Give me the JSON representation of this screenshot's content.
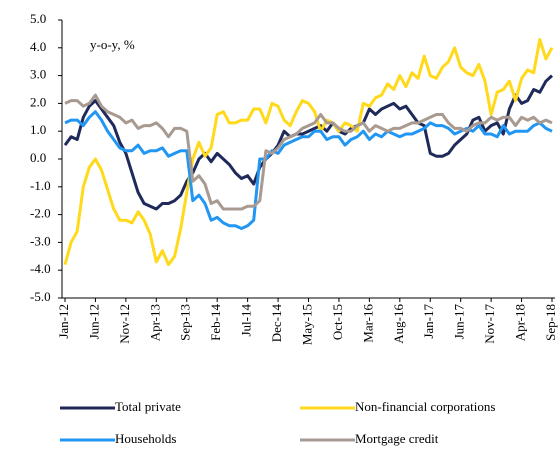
{
  "chart_data": {
    "type": "line",
    "annotation": "y-o-y, %",
    "categories": [
      "Jan-12",
      null,
      null,
      null,
      null,
      "Jun-12",
      null,
      null,
      null,
      null,
      "Nov-12",
      null,
      null,
      null,
      null,
      "Apr-13",
      null,
      null,
      null,
      null,
      "Sep-13",
      null,
      null,
      null,
      null,
      "Feb-14",
      null,
      null,
      null,
      null,
      "Jul-14",
      null,
      null,
      null,
      null,
      "Dec-14",
      null,
      null,
      null,
      null,
      "May-15",
      null,
      null,
      null,
      null,
      "Oct-15",
      null,
      null,
      null,
      null,
      "Mar-16",
      null,
      null,
      null,
      null,
      "Aug-16",
      null,
      null,
      null,
      null,
      "Jan-17",
      null,
      null,
      null,
      null,
      "Jun-17",
      null,
      null,
      null,
      null,
      "Nov-17",
      null,
      null,
      null,
      null,
      "Apr-18",
      null,
      null,
      null,
      null,
      "Sep-18"
    ],
    "series": [
      {
        "name": "Total private",
        "color": "#1f2a5a",
        "values": [
          0.5,
          0.8,
          0.7,
          1.5,
          1.9,
          2.1,
          1.8,
          1.5,
          1.2,
          0.6,
          0.2,
          -0.5,
          -1.2,
          -1.6,
          -1.7,
          -1.8,
          -1.6,
          -1.6,
          -1.5,
          -1.3,
          -0.8,
          -0.5,
          0.0,
          0.2,
          -0.1,
          0.2,
          0.0,
          -0.2,
          -0.5,
          -0.7,
          -0.6,
          -0.9,
          -0.3,
          0.0,
          0.2,
          0.5,
          1.0,
          0.8,
          0.9,
          0.9,
          1.0,
          1.1,
          1.2,
          1.0,
          1.3,
          1.0,
          0.9,
          1.1,
          1.2,
          1.3,
          1.8,
          1.6,
          1.8,
          1.9,
          2.0,
          1.8,
          1.9,
          1.6,
          1.3,
          1.2,
          0.2,
          0.1,
          0.1,
          0.2,
          0.5,
          0.7,
          0.9,
          1.4,
          1.5,
          1.0,
          1.2,
          1.3,
          0.9,
          1.8,
          2.3,
          2.0,
          2.1,
          2.5,
          2.4,
          2.8,
          3.0
        ]
      },
      {
        "name": "Non-financial corporations",
        "color": "#ffd91a",
        "values": [
          -3.8,
          -3.0,
          -2.6,
          -1.0,
          -0.3,
          0.0,
          -0.4,
          -1.1,
          -1.8,
          -2.2,
          -2.2,
          -2.3,
          -1.9,
          -2.2,
          -2.7,
          -3.7,
          -3.3,
          -3.8,
          -3.5,
          -2.5,
          -1.2,
          0.0,
          0.6,
          0.1,
          0.4,
          1.6,
          1.7,
          1.3,
          1.3,
          1.4,
          1.4,
          1.8,
          1.8,
          1.3,
          2.0,
          1.9,
          1.4,
          1.2,
          1.7,
          2.1,
          2.0,
          1.7,
          1.0,
          1.4,
          1.3,
          1.0,
          1.3,
          1.2,
          1.0,
          2.0,
          1.9,
          2.2,
          2.3,
          2.7,
          2.5,
          3.0,
          2.6,
          3.1,
          2.9,
          3.7,
          3.0,
          2.9,
          3.3,
          3.5,
          4.0,
          3.3,
          3.1,
          3.0,
          3.4,
          2.8,
          1.6,
          2.4,
          2.5,
          2.8,
          2.1,
          2.9,
          3.2,
          3.1,
          4.3,
          3.6,
          4.0
        ]
      },
      {
        "name": "Households",
        "color": "#2196f3",
        "values": [
          1.3,
          1.4,
          1.4,
          1.2,
          1.5,
          1.7,
          1.4,
          1.0,
          0.7,
          0.4,
          0.3,
          0.3,
          0.5,
          0.2,
          0.3,
          0.3,
          0.4,
          0.1,
          0.2,
          0.3,
          0.3,
          -1.5,
          -1.3,
          -1.6,
          -2.2,
          -2.1,
          -2.3,
          -2.4,
          -2.4,
          -2.5,
          -2.4,
          -2.2,
          0.0,
          0.0,
          0.3,
          0.2,
          0.5,
          0.6,
          0.7,
          0.8,
          0.8,
          1.0,
          1.0,
          0.7,
          0.8,
          0.8,
          0.5,
          0.7,
          0.8,
          1.0,
          0.7,
          0.9,
          0.8,
          1.0,
          0.9,
          0.8,
          0.9,
          0.9,
          1.0,
          1.1,
          1.3,
          1.2,
          1.2,
          1.1,
          0.9,
          1.0,
          1.1,
          1.0,
          1.2,
          0.9,
          0.9,
          0.8,
          1.2,
          0.9,
          1.0,
          1.0,
          1.0,
          1.2,
          1.3,
          1.1,
          1.0
        ]
      },
      {
        "name": "Mortgage credit",
        "color": "#a89a90",
        "values": [
          2.0,
          2.1,
          2.1,
          1.9,
          2.0,
          2.3,
          1.9,
          1.7,
          1.6,
          1.5,
          1.3,
          1.4,
          1.1,
          1.2,
          1.2,
          1.3,
          1.1,
          0.8,
          1.1,
          1.1,
          1.0,
          -0.8,
          -0.6,
          -0.9,
          -1.6,
          -1.5,
          -1.8,
          -1.8,
          -1.8,
          -1.8,
          -1.7,
          -1.7,
          -1.5,
          0.3,
          0.2,
          0.4,
          0.7,
          0.8,
          0.9,
          1.1,
          1.2,
          1.3,
          1.6,
          1.3,
          1.3,
          1.1,
          1.0,
          1.0,
          1.2,
          1.3,
          1.0,
          1.2,
          1.1,
          1.0,
          1.1,
          1.1,
          1.2,
          1.3,
          1.3,
          1.4,
          1.5,
          1.6,
          1.6,
          1.3,
          1.1,
          1.1,
          1.0,
          1.2,
          1.3,
          1.3,
          1.5,
          1.4,
          1.5,
          1.5,
          1.2,
          1.5,
          1.4,
          1.5,
          1.3,
          1.4,
          1.3
        ]
      }
    ],
    "ylim": [
      -5,
      5
    ],
    "yticks": [
      {
        "value": -5,
        "label": "-5.0"
      },
      {
        "value": -4,
        "label": "-4.0"
      },
      {
        "value": -3,
        "label": "-3.0"
      },
      {
        "value": -2,
        "label": "-2.0"
      },
      {
        "value": -1,
        "label": "-1.0"
      },
      {
        "value": 0,
        "label": "0.0"
      },
      {
        "value": 1,
        "label": "1.0"
      },
      {
        "value": 2,
        "label": "2.0"
      },
      {
        "value": 3,
        "label": "3.0"
      },
      {
        "value": 4,
        "label": "4.0"
      },
      {
        "value": 5,
        "label": "5.0"
      }
    ],
    "grid": false
  }
}
